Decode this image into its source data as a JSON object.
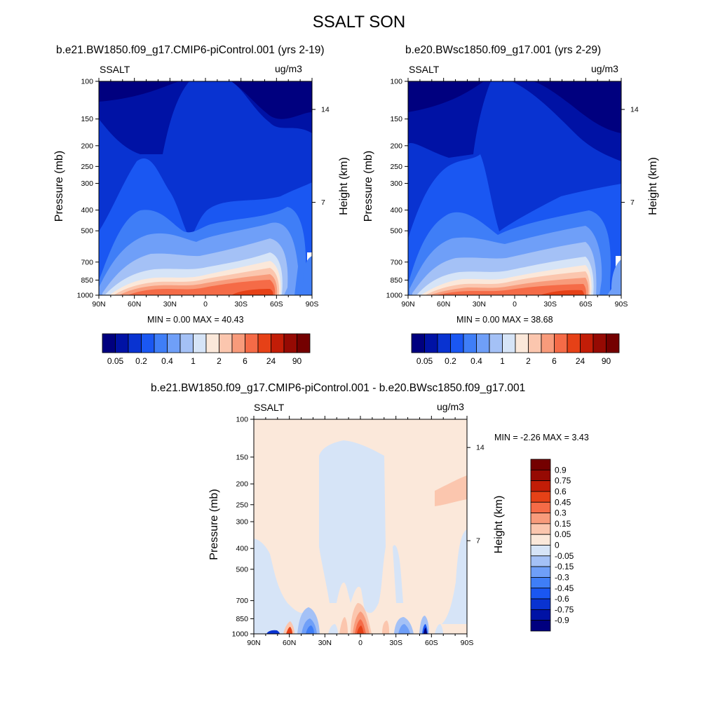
{
  "main_title": "SSALT SON",
  "chart_data": [
    {
      "type": "heatmap",
      "title": "b.e21.BW1850.f09_g17.CMIP6-piControl.001 (yrs 2-19)",
      "left_label": "SSALT",
      "right_label": "ug/m3",
      "ylabel": "Pressure (mb)",
      "ylabel_right": "Height (km)",
      "xlim": [
        "90N",
        "90S"
      ],
      "ylim": [
        1000,
        100
      ],
      "y_scale": "log",
      "x_ticks": [
        "90N",
        "60N",
        "30N",
        "0",
        "30S",
        "60S",
        "90S"
      ],
      "y_ticks": [
        "100",
        "150",
        "200",
        "250",
        "300",
        "400",
        "500",
        "700",
        "850",
        "1000"
      ],
      "y_ticks_right": [
        "14",
        "7"
      ],
      "min_max_text": "MIN =   0.00  MAX =  40.43",
      "min": 0.0,
      "max": 40.43,
      "colorbar_labels": [
        "0.05",
        "0.2",
        "0.4",
        "1",
        "2",
        "6",
        "24",
        "90"
      ],
      "colorbar_orientation": "horizontal"
    },
    {
      "type": "heatmap",
      "title": "b.e20.BWsc1850.f09_g17.001 (yrs 2-29)",
      "left_label": "SSALT",
      "right_label": "ug/m3",
      "ylabel": "Pressure (mb)",
      "ylabel_right": "Height (km)",
      "xlim": [
        "90N",
        "90S"
      ],
      "ylim": [
        1000,
        100
      ],
      "y_scale": "log",
      "x_ticks": [
        "90N",
        "60N",
        "30N",
        "0",
        "30S",
        "60S",
        "90S"
      ],
      "y_ticks": [
        "100",
        "150",
        "200",
        "250",
        "300",
        "400",
        "500",
        "700",
        "850",
        "1000"
      ],
      "y_ticks_right": [
        "14",
        "7"
      ],
      "min_max_text": "MIN =   0.00  MAX =  38.68",
      "min": 0.0,
      "max": 38.68,
      "colorbar_labels": [
        "0.05",
        "0.2",
        "0.4",
        "1",
        "2",
        "6",
        "24",
        "90"
      ],
      "colorbar_orientation": "horizontal"
    },
    {
      "type": "heatmap",
      "title": "b.e21.BW1850.f09_g17.CMIP6-piControl.001 - b.e20.BWsc1850.f09_g17.001",
      "left_label": "SSALT",
      "right_label": "ug/m3",
      "ylabel": "Pressure (mb)",
      "ylabel_right": "Height (km)",
      "xlim": [
        "90N",
        "90S"
      ],
      "ylim": [
        1000,
        100
      ],
      "y_scale": "log",
      "x_ticks": [
        "90N",
        "60N",
        "30N",
        "0",
        "30S",
        "60S",
        "90S"
      ],
      "y_ticks": [
        "100",
        "150",
        "200",
        "250",
        "300",
        "400",
        "500",
        "700",
        "850",
        "1000"
      ],
      "y_ticks_right": [
        "14",
        "7"
      ],
      "min_max_text": "MIN =  -2.26  MAX =   3.43",
      "min": -2.26,
      "max": 3.43,
      "colorbar_labels": [
        "0.9",
        "0.75",
        "0.6",
        "0.45",
        "0.3",
        "0.15",
        "0.05",
        "0",
        "-0.05",
        "-0.15",
        "-0.3",
        "-0.45",
        "-0.6",
        "-0.75",
        "-0.9"
      ],
      "colorbar_orientation": "vertical"
    }
  ],
  "colors": {
    "abs_scale": [
      "#00007f",
      "#0012a5",
      "#0933d1",
      "#1a57f2",
      "#3f7ef7",
      "#6f9ff8",
      "#a4c1f6",
      "#d6e4f7",
      "#fbe8da",
      "#fbc6ae",
      "#f89b7b",
      "#f56b47",
      "#e64117",
      "#c21d07",
      "#960a03",
      "#740000"
    ],
    "diff_scale": [
      "#00007f",
      "#0012a5",
      "#0933d1",
      "#1a57f2",
      "#3f7ef7",
      "#6f9ff8",
      "#a4c1f6",
      "#d6e4f7",
      "#fbe8da",
      "#fbc6ae",
      "#f89b7b",
      "#f56b47",
      "#e64117",
      "#c21d07",
      "#960a03",
      "#740000"
    ]
  }
}
